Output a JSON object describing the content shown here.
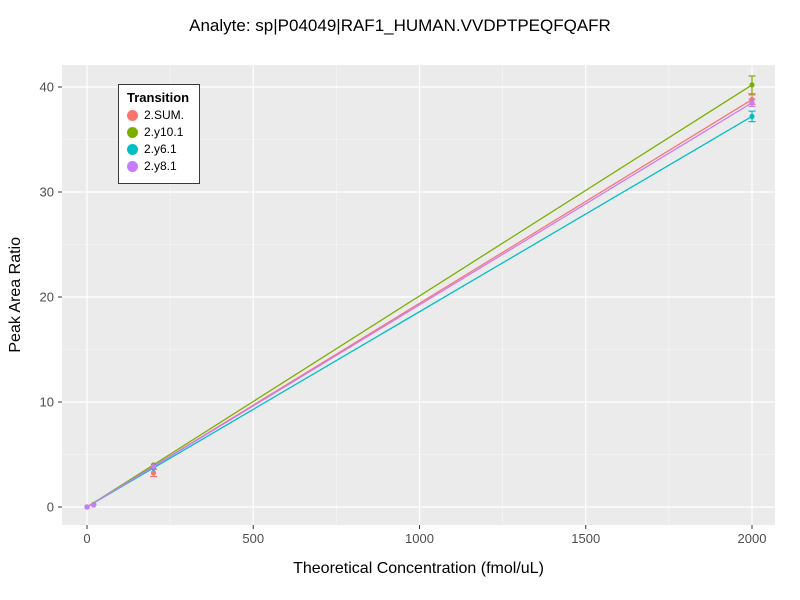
{
  "page": {
    "title": "Analyte: sp|P04049|RAF1_HUMAN.VVDPTPEQFQAFR"
  },
  "chart_data": {
    "type": "line",
    "title": "Analyte: sp|P04049|RAF1_HUMAN.VVDPTPEQFQAFR",
    "xlabel": "Theoretical Concentration (fmol/uL)",
    "ylabel": "Peak Area Ratio",
    "xlim": [
      -75,
      2070
    ],
    "ylim": [
      -1.7,
      42
    ],
    "x_ticks": [
      0,
      500,
      1000,
      1500,
      2000
    ],
    "y_ticks": [
      0,
      10,
      20,
      30,
      40
    ],
    "x_minor_ticks": [
      250,
      750,
      1250,
      1750
    ],
    "y_minor_ticks": [
      5,
      15,
      25,
      35
    ],
    "grid": true,
    "panel_background": "#EBEBEB",
    "grid_color": "#FFFFFF",
    "tick_label_color": "#4D4D4D",
    "legend_title": "Transition",
    "legend_position": "top-left-inside",
    "series": [
      {
        "name": "2.SUM.",
        "color": "#F8766D",
        "x": [
          0,
          20,
          200,
          2000
        ],
        "y": [
          0,
          0.2,
          3.25,
          38.8
        ],
        "yerr": [
          0,
          0,
          0.35,
          0.45
        ]
      },
      {
        "name": "2.y10.1",
        "color": "#7CAE00",
        "x": [
          0,
          20,
          200,
          2000
        ],
        "y": [
          0,
          0.25,
          4.0,
          40.2
        ],
        "yerr": [
          0,
          0,
          0,
          0.85
        ]
      },
      {
        "name": "2.y6.1",
        "color": "#00BFC4",
        "x": [
          0,
          20,
          200,
          2000
        ],
        "y": [
          0,
          0.2,
          3.7,
          37.2
        ],
        "yerr": [
          0,
          0,
          0,
          0.5
        ]
      },
      {
        "name": "2.y8.1",
        "color": "#C77CFF",
        "x": [
          0,
          20,
          200,
          2000
        ],
        "y": [
          0,
          0.2,
          3.85,
          38.5
        ],
        "yerr": [
          0,
          0,
          0,
          0.35
        ]
      }
    ]
  }
}
